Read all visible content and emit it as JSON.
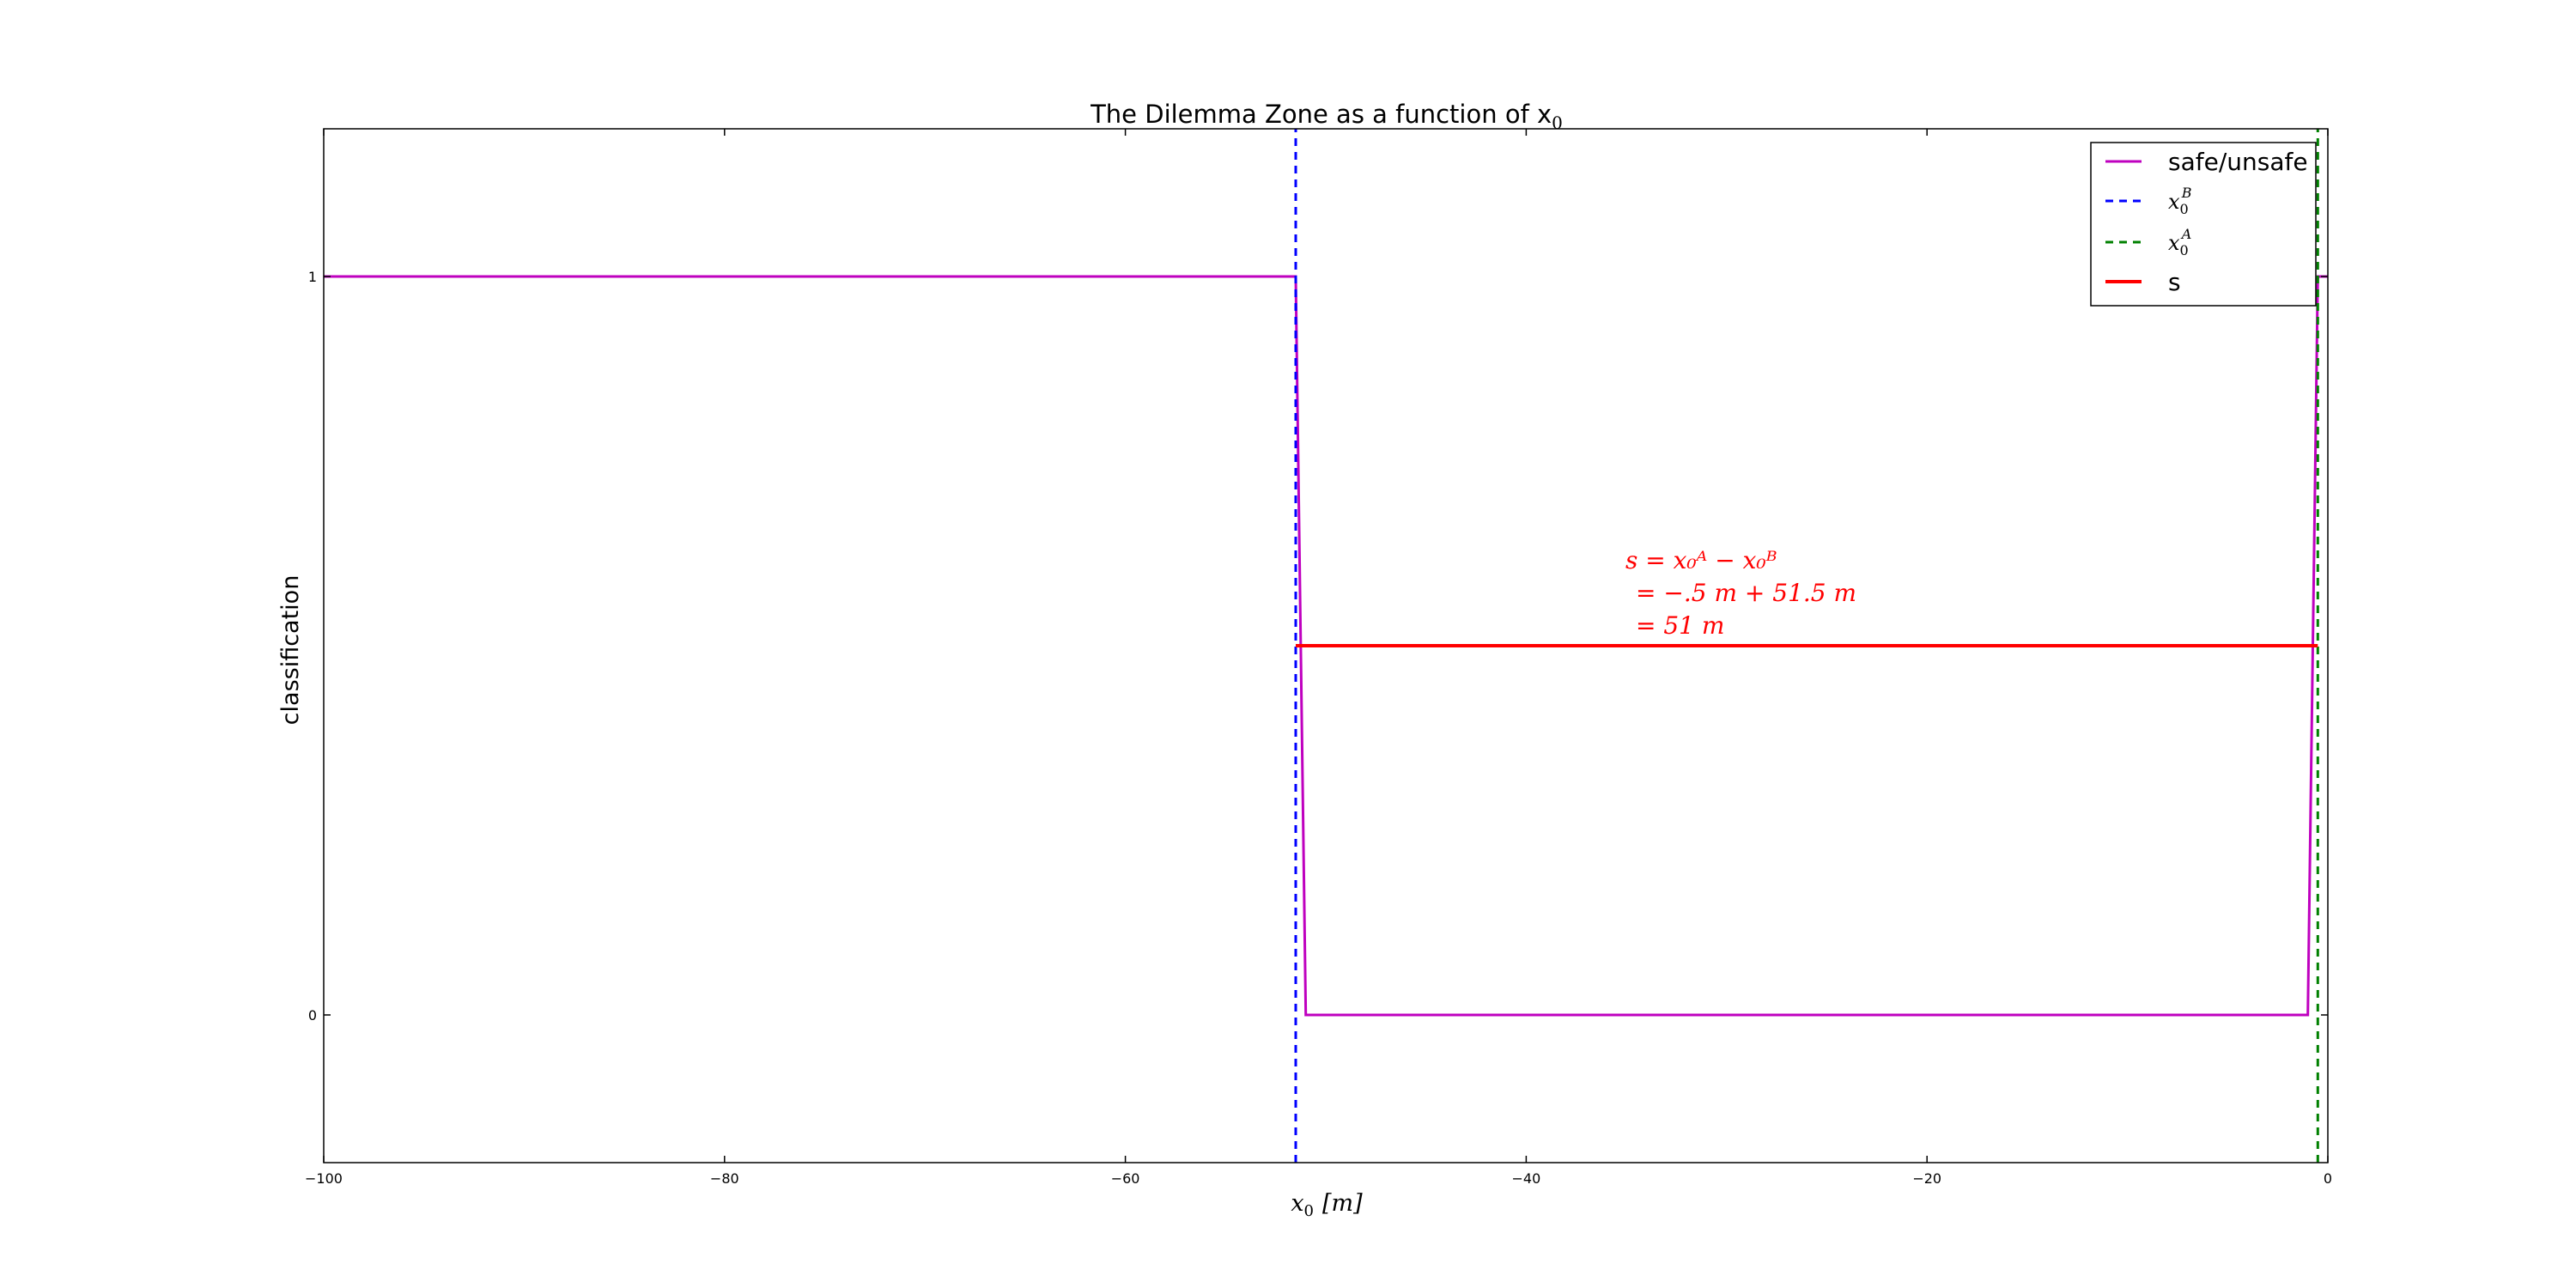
{
  "chart_data": {
    "type": "line",
    "title": "The Dilemma Zone as a function of x",
    "title_subscript": "0",
    "xlabel": "x",
    "xlabel_subscript": "0",
    "xlabel_unit": "[m]",
    "ylabel": "classification",
    "xlim": [
      -100,
      0
    ],
    "ylim": [
      -0.2,
      1.2
    ],
    "xticks": [
      -100,
      -80,
      -60,
      -40,
      -20,
      0
    ],
    "xtick_labels": [
      "−100",
      "−80",
      "−60",
      "−40",
      "−20",
      "0"
    ],
    "yticks": [
      0,
      1
    ],
    "ytick_labels": [
      "0",
      "1"
    ],
    "grid": false,
    "legend_position": "top-right",
    "series": [
      {
        "name": "safe/unsafe",
        "color": "#bf00bf",
        "style": "solid",
        "x": [
          -100,
          -51.5,
          -51,
          -1,
          -0.5,
          0
        ],
        "y": [
          1,
          1,
          0,
          0,
          1,
          1
        ]
      },
      {
        "name": "x0B",
        "legend_main": "x",
        "legend_sub": "0",
        "legend_sup": "B",
        "color": "#0000ff",
        "style": "dashed",
        "x": [
          -51.5,
          -51.5
        ],
        "y": [
          -0.2,
          1.2
        ]
      },
      {
        "name": "x0A",
        "legend_main": "x",
        "legend_sub": "0",
        "legend_sup": "A",
        "color": "#008000",
        "style": "dashed",
        "x": [
          -0.5,
          -0.5
        ],
        "y": [
          -0.2,
          1.2
        ]
      },
      {
        "name": "s",
        "color": "#ff0000",
        "style": "solid",
        "x": [
          -51.5,
          -0.5
        ],
        "y": [
          0.5,
          0.5
        ]
      }
    ],
    "annotation": {
      "color": "#ff0000",
      "x": -35,
      "y": 0.6,
      "lines": [
        "s = x₀ᴬ − x₀ᴮ",
        "= −.5 m + 51.5 m",
        "= 51 m"
      ]
    }
  }
}
